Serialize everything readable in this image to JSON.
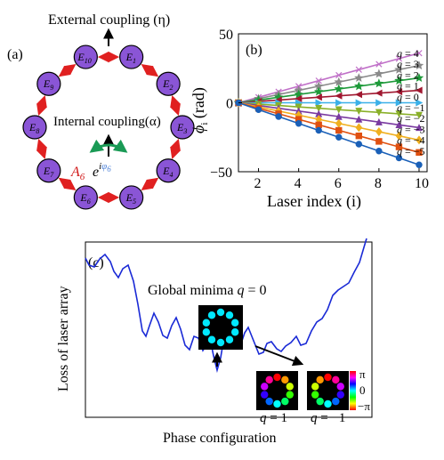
{
  "chart_data": [
    {
      "type": "diagram",
      "panel_label": "(a)",
      "top_label": "External coupling (η)",
      "center_label": "Internal coupling(α)",
      "nodes": [
        "E1",
        "E2",
        "E3",
        "E4",
        "E5",
        "E6",
        "E7",
        "E8",
        "E9",
        "E10"
      ],
      "amplitude_label": "A6",
      "phase_label": "e^{iφ6}",
      "colors": {
        "node_fill": "#8a55d6",
        "coupling_arrow": "#e02020",
        "phase_arrow": "#1a9a55",
        "amplitude_text": "#d11a1a",
        "phase_text": "#4a7fd6"
      }
    },
    {
      "type": "line",
      "panel_label": "(b)",
      "xlabel": "Laser index (i)",
      "ylabel": "ϕ i (rad)",
      "xlim": [
        1,
        10.4
      ],
      "ylim": [
        -50,
        50
      ],
      "xticks": [
        2,
        4,
        6,
        8,
        10
      ],
      "yticks": [
        -50,
        0,
        50
      ],
      "x": [
        1,
        2,
        3,
        4,
        5,
        6,
        7,
        8,
        9,
        10
      ],
      "series": [
        {
          "name": "q = 4",
          "slope": 4,
          "color": "#c070c8",
          "marker": "x"
        },
        {
          "name": "q = 3",
          "slope": 3,
          "color": "#8a8a8a",
          "marker": "star"
        },
        {
          "name": "q = 2",
          "slope": 2,
          "color": "#1e9a3a",
          "marker": "star"
        },
        {
          "name": "q = 1",
          "slope": 1,
          "color": "#a01830",
          "marker": "triangle-left"
        },
        {
          "name": "q = 0",
          "slope": 0,
          "color": "#3ab0e8",
          "marker": "triangle-right"
        },
        {
          "name": "q = −1",
          "slope": -1,
          "color": "#8ab02a",
          "marker": "triangle-down"
        },
        {
          "name": "q = −2",
          "slope": -2,
          "color": "#7a3aa0",
          "marker": "triangle-up"
        },
        {
          "name": "q = −3",
          "slope": -3,
          "color": "#f0b020",
          "marker": "diamond"
        },
        {
          "name": "q = −4",
          "slope": -4,
          "color": "#e05010",
          "marker": "square"
        },
        {
          "name": "q = −5",
          "slope": -5,
          "color": "#1a60b8",
          "marker": "circle"
        }
      ],
      "values_note": "phase = slope × (i − 1)"
    },
    {
      "type": "line",
      "panel_label": "(c)",
      "xlabel": "Phase configuration",
      "ylabel": "Loss of laser array",
      "annotation_main": "Global minima q = 0",
      "inset_labels": [
        "q = 1",
        "q = −1"
      ],
      "colorbar_ticks": [
        "π",
        "0",
        "−π"
      ],
      "curve_color": "#1a2ad6"
    }
  ]
}
